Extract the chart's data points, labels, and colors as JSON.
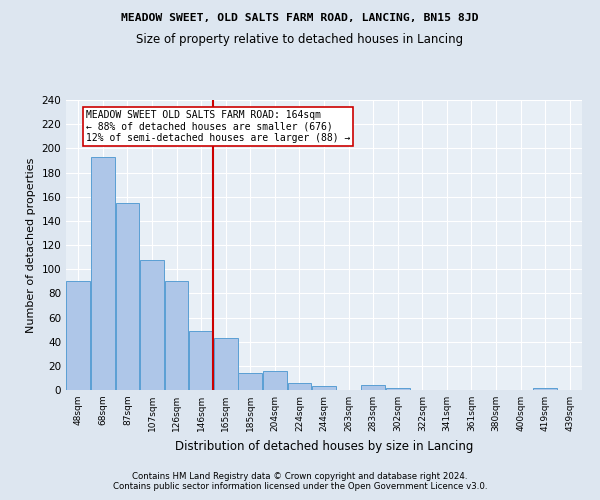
{
  "title": "MEADOW SWEET, OLD SALTS FARM ROAD, LANCING, BN15 8JD",
  "subtitle": "Size of property relative to detached houses in Lancing",
  "xlabel": "Distribution of detached houses by size in Lancing",
  "ylabel": "Number of detached properties",
  "footer1": "Contains HM Land Registry data © Crown copyright and database right 2024.",
  "footer2": "Contains public sector information licensed under the Open Government Licence v3.0.",
  "categories": [
    "48sqm",
    "68sqm",
    "87sqm",
    "107sqm",
    "126sqm",
    "146sqm",
    "165sqm",
    "185sqm",
    "204sqm",
    "224sqm",
    "244sqm",
    "263sqm",
    "283sqm",
    "302sqm",
    "322sqm",
    "341sqm",
    "361sqm",
    "380sqm",
    "400sqm",
    "419sqm",
    "439sqm"
  ],
  "values": [
    90,
    193,
    155,
    108,
    90,
    49,
    43,
    14,
    16,
    6,
    3,
    0,
    4,
    2,
    0,
    0,
    0,
    0,
    0,
    2,
    0
  ],
  "bar_color": "#aec6e8",
  "bar_edge_color": "#5a9fd4",
  "annotation_title": "MEADOW SWEET OLD SALTS FARM ROAD: 164sqm",
  "annotation_line1": "← 88% of detached houses are smaller (676)",
  "annotation_line2": "12% of semi-detached houses are larger (88) →",
  "vline_color": "#cc0000",
  "vline_index": 6,
  "ylim": [
    0,
    240
  ],
  "yticks": [
    0,
    20,
    40,
    60,
    80,
    100,
    120,
    140,
    160,
    180,
    200,
    220,
    240
  ],
  "bg_color": "#dde6f0",
  "plot_bg_color": "#e8eff6"
}
